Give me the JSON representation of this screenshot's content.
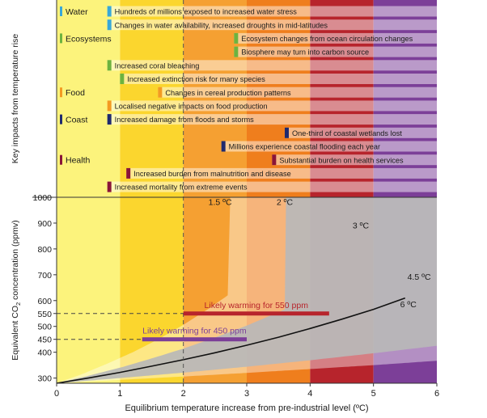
{
  "chart_data": [
    {
      "type": "table",
      "ylabel": "Key impacts from temperature rise",
      "band_colors": [
        "#fcf37c",
        "#fbd62e",
        "#f5a032",
        "#ef7e1d",
        "#b7242c",
        "#7c3f98"
      ],
      "band_edges": [
        0,
        1,
        2,
        3,
        4,
        5,
        6
      ],
      "rows": [
        {
          "sector": "Water",
          "sector_color": "#38a8d8",
          "items": [
            {
              "text": "Hundreds of millions exposed to increased water stress",
              "start": 0.8,
              "color": "#38a8d8"
            },
            {
              "text": "Changes in water availability, increased droughts in mid-latitudes",
              "start": 0.8,
              "color": "#38a8d8"
            }
          ]
        },
        {
          "sector": "Ecosystems",
          "sector_color": "#6db33f",
          "items": [
            {
              "text": "Ecosystem changes from ocean circulation changes",
              "start": 2.8,
              "color": "#6db33f"
            },
            {
              "text": "Biosphere may turn into carbon source",
              "start": 2.8,
              "color": "#6db33f"
            },
            {
              "text": "Increased coral bleaching",
              "start": 0.8,
              "color": "#6db33f"
            },
            {
              "text": "Increased extinction risk for many species",
              "start": 1.0,
              "color": "#6db33f"
            }
          ]
        },
        {
          "sector": "Food",
          "sector_color": "#f39a22",
          "items": [
            {
              "text": "Changes in cereal production patterns",
              "start": 1.6,
              "color": "#f39a22"
            },
            {
              "text": "Localised negative impacts on food production",
              "start": 0.8,
              "color": "#f39a22"
            }
          ]
        },
        {
          "sector": "Coast",
          "sector_color": "#1f2a6e",
          "items": [
            {
              "text": "Increased damage from floods and storms",
              "start": 0.8,
              "color": "#1f2a6e"
            },
            {
              "text": "One-third of coastal wetlands lost",
              "start": 3.6,
              "color": "#1f2a6e"
            },
            {
              "text": "Millions experience coastal flooding each year",
              "start": 2.6,
              "color": "#1f2a6e"
            }
          ]
        },
        {
          "sector": "Health",
          "sector_color": "#8a1538",
          "items": [
            {
              "text": "Substantial burden on health services",
              "start": 3.4,
              "color": "#8a1538"
            },
            {
              "text": "Increased burden from malnutrition and disease",
              "start": 1.1,
              "color": "#8a1538"
            },
            {
              "text": "Increased mortality from extreme events",
              "start": 0.8,
              "color": "#8a1538"
            }
          ]
        }
      ]
    },
    {
      "type": "line",
      "xlabel": "Equilibrium temperature increase from pre-industrial level (ºC)",
      "ylabel": "Equivalent CO2 concentration (ppmv)",
      "ylabel_main": "Equivalent CO",
      "ylabel_sub": "2",
      "ylabel_tail": " concentration (ppmv)",
      "xlim": [
        0,
        6
      ],
      "ylim": [
        280,
        1000
      ],
      "x_ticks": [
        "0",
        "1",
        "2",
        "3",
        "4",
        "5",
        "6"
      ],
      "y_ticks": [
        "300",
        "400",
        "450",
        "500",
        "550",
        "600",
        "700",
        "800",
        "900",
        "1000"
      ],
      "y_tick_values": [
        300,
        400,
        450,
        500,
        550,
        600,
        700,
        800,
        900,
        1000
      ],
      "series": [
        {
          "name": "1.5 ºC",
          "x": [
            0,
            0.4,
            0.8,
            1.2,
            1.6,
            2.0,
            2.4,
            2.74
          ],
          "y": [
            280,
            315,
            356,
            400,
            450,
            506,
            569,
            627
          ]
        },
        {
          "name": "2 ºC",
          "x": [
            0,
            0.5,
            1.0,
            1.5,
            2.0,
            2.5,
            3.0,
            3.5,
            3.62
          ],
          "y": [
            280,
            309,
            340,
            376,
            414,
            457,
            503,
            555,
            568
          ]
        },
        {
          "name": "3 ºC",
          "x": [
            0,
            0.5,
            1.0,
            1.5,
            2.0,
            2.5,
            3.0,
            3.5,
            4.0,
            4.5,
            5.0,
            5.5
          ],
          "y": [
            280,
            300,
            322,
            346,
            371,
            398,
            427,
            458,
            492,
            528,
            566,
            610
          ]
        },
        {
          "name": "4.5 ºC",
          "x": [
            0,
            1,
            2,
            3,
            4,
            5,
            6
          ],
          "y": [
            280,
            300,
            321,
            344,
            369,
            396,
            425
          ]
        },
        {
          "name": "6 ºC",
          "x": [
            0,
            1,
            2,
            3,
            4,
            5,
            6
          ],
          "y": [
            280,
            293,
            306,
            320,
            335,
            350,
            367
          ]
        }
      ],
      "line_labels": [
        "1.5 ºC",
        "2 ºC",
        "3 ºC",
        "4.5 ºC",
        "6 ºC"
      ],
      "ranges": [
        {
          "label": "Likely warming for 550 ppm",
          "ppm": 550,
          "x": [
            2.0,
            4.3
          ],
          "color": "#b7242c"
        },
        {
          "label": "Likely warming for 450 ppm",
          "ppm": 450,
          "x": [
            1.35,
            3.0
          ],
          "color": "#7c3f98"
        }
      ],
      "reference_x": 2,
      "grid": false
    }
  ]
}
